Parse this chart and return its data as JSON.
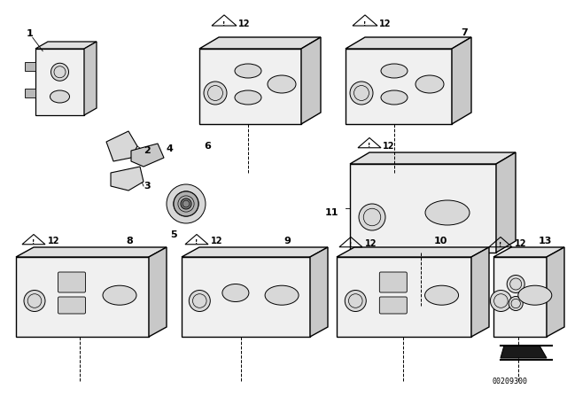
{
  "background_color": "#ffffff",
  "line_color": "#000000",
  "diagram_id": "00209300",
  "fig_w": 6.4,
  "fig_h": 4.48,
  "dpi": 100
}
